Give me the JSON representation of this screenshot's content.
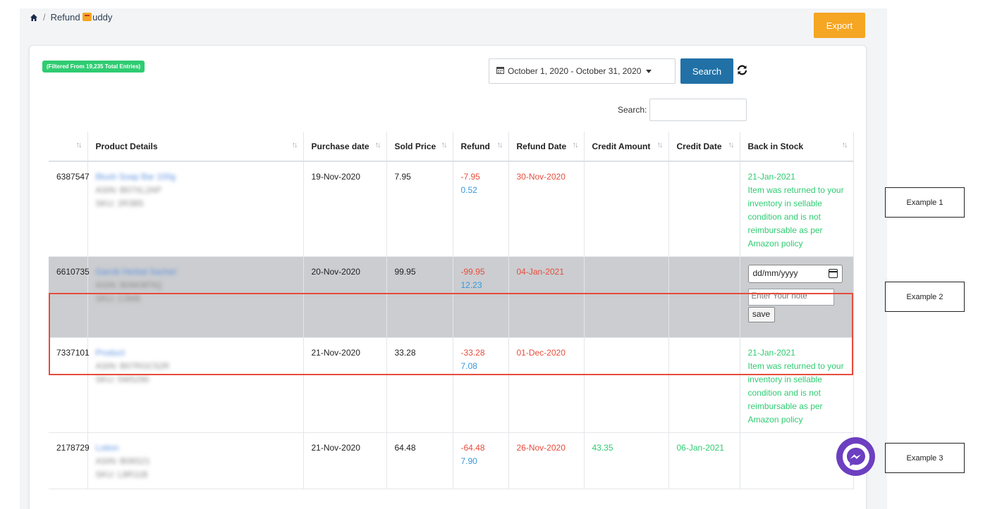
{
  "breadcrumb": {
    "app_name_prefix": "Refund ",
    "app_name_suffix": "uddy"
  },
  "toolbar": {
    "export_label": "Export"
  },
  "filter": {
    "badge": "(Filtered From 19,235 Total Entries)",
    "date_range": "October 1, 2020 - October 31, 2020",
    "search_button": "Search",
    "search_label": "Search:"
  },
  "table": {
    "headers": [
      "",
      "Product Details",
      "Purchase date",
      "Sold Price",
      "Refund",
      "Refund Date",
      "Credit Amount",
      "Credit Date",
      "Back in Stock"
    ],
    "rows": [
      {
        "id": "6387547",
        "product": [
          "Blush Soap Bar 100g",
          "ASIN: B07XL2AP",
          "SKU: 2R3B5"
        ],
        "purchase_date": "19-Nov-2020",
        "sold_price": "7.95",
        "refund": "-7.95",
        "refund_fee": "0.52",
        "refund_date": "30-Nov-2020",
        "credit_amount": "",
        "credit_date": "",
        "back_in_stock_date": "21-Jan-2021",
        "back_in_stock_note": [
          "Item was returned to your",
          "inventory in sellable",
          "condition and is not",
          "reimbursable as per",
          "Amazon policy"
        ]
      },
      {
        "id": "6610735",
        "product": [
          "Garcik Herbal Sachet",
          "ASIN: B06K8F0Q",
          "SKU: C3M8"
        ],
        "purchase_date": "20-Nov-2020",
        "sold_price": "99.95",
        "refund": "-99.95",
        "refund_fee": "12.23",
        "refund_date": "04-Jan-2021",
        "credit_amount": "",
        "credit_date": "",
        "date_placeholder": "dd/mm/yyyy",
        "note_placeholder": "Enter Your note",
        "save_label": "save"
      },
      {
        "id": "7337101",
        "product": [
          "Product",
          "ASIN: B07RGC52R",
          "SKU: 5W5290"
        ],
        "purchase_date": "21-Nov-2020",
        "sold_price": "33.28",
        "refund": "-33.28",
        "refund_fee": "7.08",
        "refund_date": "01-Dec-2020",
        "credit_amount": "",
        "credit_date": "",
        "back_in_stock_date": "21-Jan-2021",
        "back_in_stock_note": [
          "Item was returned to your",
          "inventory in sellable",
          "condition and is not",
          "reimbursable as per",
          "Amazon policy"
        ]
      },
      {
        "id": "2178729",
        "product": [
          "Lotion",
          "ASIN: B08S21",
          "SKU: L8R11B"
        ],
        "purchase_date": "21-Nov-2020",
        "sold_price": "64.48",
        "refund": "-64.48",
        "refund_fee": "7.90",
        "refund_date": "26-Nov-2020",
        "credit_amount": "43.35",
        "credit_date": "06-Jan-2021"
      }
    ]
  },
  "annotations": [
    "Example 1",
    "Example 2",
    "Example 3"
  ],
  "colors": {
    "accent_orange": "#f5a623",
    "primary_blue": "#2171a7",
    "success_green": "#2ecc71",
    "danger_red": "#e74c3c",
    "messenger_purple": "#6c3fc0"
  },
  "icons": [
    "home-icon",
    "calendar-icon",
    "caret-down-icon",
    "refresh-icon",
    "sort-icon",
    "messenger-icon"
  ]
}
